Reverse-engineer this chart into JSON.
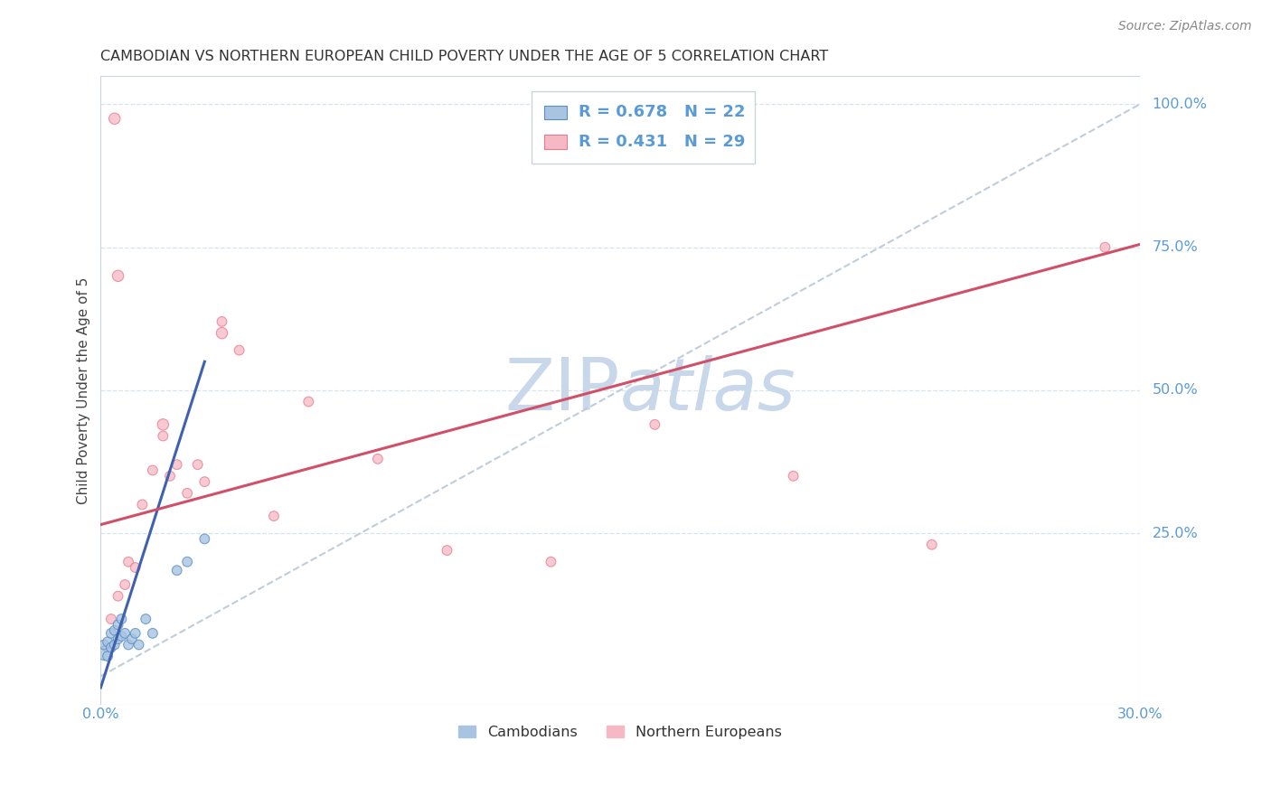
{
  "title": "CAMBODIAN VS NORTHERN EUROPEAN CHILD POVERTY UNDER THE AGE OF 5 CORRELATION CHART",
  "source": "Source: ZipAtlas.com",
  "ylabel": "Child Poverty Under the Age of 5",
  "legend_cambodians": "Cambodians",
  "legend_northern_europeans": "Northern Europeans",
  "R_cambodians": "0.678",
  "N_cambodians": "22",
  "R_northern": "0.431",
  "N_northern": "29",
  "blue_fill": "#a8c4e0",
  "pink_fill": "#f5b8c4",
  "blue_edge": "#5b8ec4",
  "pink_edge": "#e8788a",
  "blue_line_color": "#4060b0",
  "pink_line_color": "#d05068",
  "axis_label_color": "#5b9bd5",
  "title_color": "#333333",
  "watermark_color": "#c8d8ea",
  "ref_line_color": "#b8c8d8",
  "grid_color": "#d8e4ec",
  "xmin": 0.0,
  "xmax": 0.3,
  "ymin": 0.0,
  "ymax": 1.0,
  "cam_x": [
    0.001,
    0.001,
    0.002,
    0.002,
    0.003,
    0.003,
    0.004,
    0.004,
    0.005,
    0.005,
    0.006,
    0.006,
    0.007,
    0.008,
    0.009,
    0.01,
    0.011,
    0.013,
    0.015,
    0.022,
    0.025,
    0.03
  ],
  "cam_y": [
    0.04,
    0.055,
    0.035,
    0.06,
    0.05,
    0.075,
    0.055,
    0.08,
    0.065,
    0.09,
    0.07,
    0.1,
    0.075,
    0.055,
    0.065,
    0.075,
    0.055,
    0.1,
    0.075,
    0.185,
    0.2,
    0.24
  ],
  "cam_s": [
    120,
    60,
    60,
    60,
    60,
    60,
    60,
    60,
    60,
    60,
    60,
    60,
    60,
    60,
    60,
    60,
    60,
    60,
    60,
    60,
    60,
    60
  ],
  "nor_x": [
    0.002,
    0.003,
    0.004,
    0.005,
    0.007,
    0.008,
    0.01,
    0.012,
    0.015,
    0.018,
    0.02,
    0.022,
    0.025,
    0.028,
    0.03,
    0.035,
    0.04,
    0.05,
    0.06,
    0.08,
    0.1,
    0.13,
    0.16,
    0.2,
    0.24,
    0.29,
    0.005,
    0.018,
    0.035
  ],
  "nor_y": [
    0.05,
    0.1,
    0.975,
    0.14,
    0.16,
    0.2,
    0.19,
    0.3,
    0.36,
    0.42,
    0.35,
    0.37,
    0.32,
    0.37,
    0.34,
    0.62,
    0.57,
    0.28,
    0.48,
    0.38,
    0.22,
    0.2,
    0.44,
    0.35,
    0.23,
    0.75,
    0.7,
    0.44,
    0.6
  ],
  "nor_s": [
    60,
    60,
    80,
    60,
    60,
    60,
    60,
    60,
    60,
    60,
    60,
    60,
    60,
    60,
    60,
    60,
    60,
    60,
    60,
    60,
    60,
    60,
    60,
    60,
    60,
    60,
    80,
    80,
    80
  ],
  "blue_line_x": [
    0.0,
    0.03
  ],
  "blue_line_y": [
    -0.02,
    0.55
  ],
  "pink_line_x": [
    0.0,
    0.3
  ],
  "pink_line_y": [
    0.265,
    0.755
  ],
  "ref_line_x": [
    0.0,
    0.3
  ],
  "ref_line_y": [
    0.0,
    1.0
  ]
}
